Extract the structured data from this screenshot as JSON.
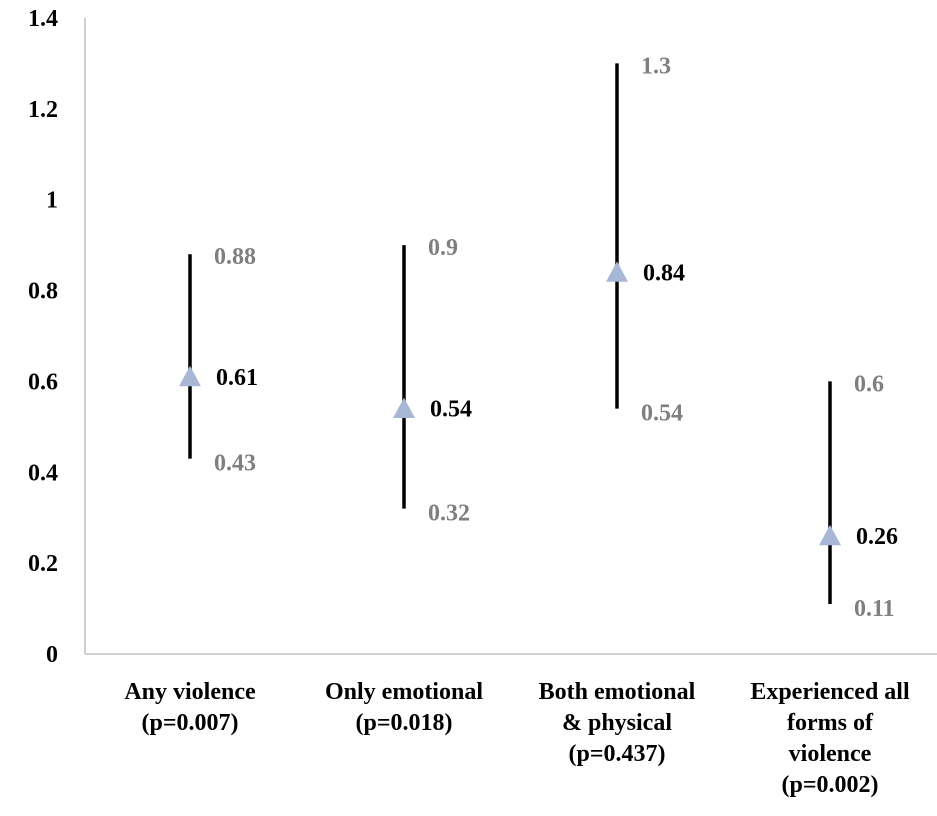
{
  "chart_data": {
    "type": "error_bar",
    "title": "",
    "xlabel": "",
    "ylabel": "",
    "ylim": [
      0,
      1.4
    ],
    "y_ticks": [
      "0",
      "0.2",
      "0.4",
      "0.6",
      "0.8",
      "1",
      "1.2",
      "1.4"
    ],
    "grid": false,
    "marker": "triangle",
    "colors": {
      "marker": "#a9b7d6",
      "ci_line": "#000000",
      "ci_label": "#7f7f7f",
      "estimate_label": "#000000",
      "axis": "#bfbfbf"
    },
    "categories": [
      {
        "label_lines": [
          "Any violence",
          "(p=0.007)"
        ],
        "estimate": 0.61,
        "lower": 0.43,
        "upper": 0.88,
        "estimate_label": "0.61",
        "lower_label": "0.43",
        "upper_label": "0.88"
      },
      {
        "label_lines": [
          "Only emotional",
          "(p=0.018)"
        ],
        "estimate": 0.54,
        "lower": 0.32,
        "upper": 0.9,
        "estimate_label": "0.54",
        "lower_label": "0.32",
        "upper_label": "0.9"
      },
      {
        "label_lines": [
          "Both emotional",
          "& physical",
          "(p=0.437)"
        ],
        "estimate": 0.84,
        "lower": 0.54,
        "upper": 1.3,
        "estimate_label": "0.84",
        "lower_label": "0.54",
        "upper_label": "1.3"
      },
      {
        "label_lines": [
          "Experienced all",
          "forms of",
          "violence",
          "(p=0.002)"
        ],
        "estimate": 0.26,
        "lower": 0.11,
        "upper": 0.6,
        "estimate_label": "0.26",
        "lower_label": "0.11",
        "upper_label": "0.6"
      }
    ]
  }
}
